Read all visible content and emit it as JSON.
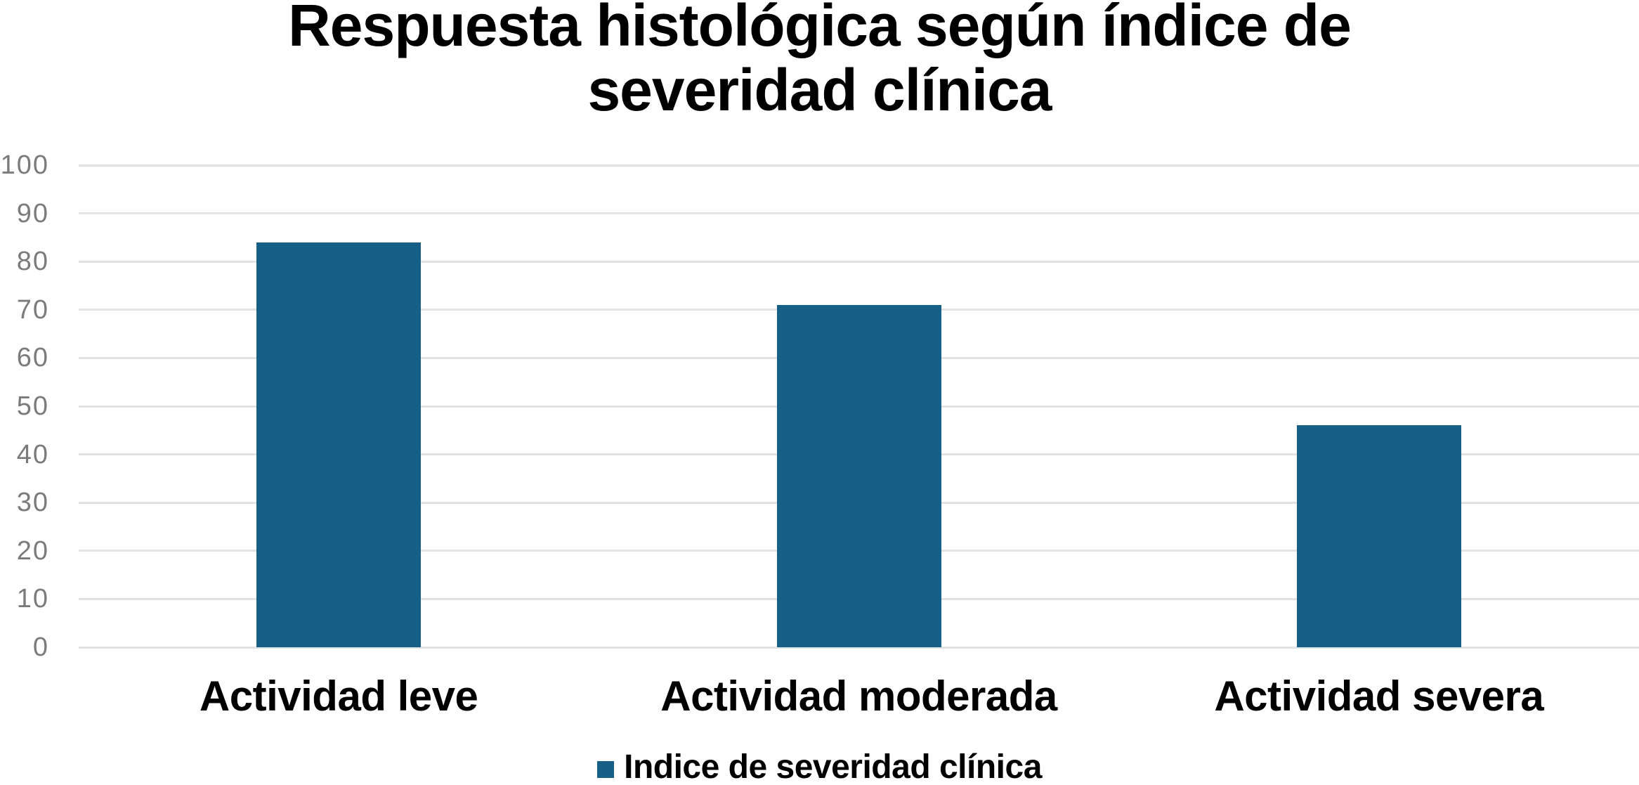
{
  "title": {
    "line1": "Respuesta histológica según índice de",
    "line2": "severidad clínica"
  },
  "legend": {
    "label": "Indice de severidad clínica"
  },
  "colors": {
    "bar": "#165f86",
    "gridline": "#e2e2e2",
    "tick_label": "#7b7b7b",
    "text": "#000000",
    "background": "#ffffff"
  },
  "chart_data": {
    "type": "bar",
    "title": "Respuesta histológica según índice de severidad clínica",
    "categories": [
      "Actividad leve",
      "Actividad moderada",
      "Actividad severa"
    ],
    "series": [
      {
        "name": "Indice de severidad clínica",
        "values": [
          84,
          71,
          46
        ]
      }
    ],
    "xlabel": "",
    "ylabel": "",
    "ylim": [
      0,
      100
    ],
    "yticks": [
      0,
      10,
      20,
      30,
      40,
      50,
      60,
      70,
      80,
      90,
      100
    ],
    "grid": "horizontal",
    "legend_position": "bottom"
  }
}
